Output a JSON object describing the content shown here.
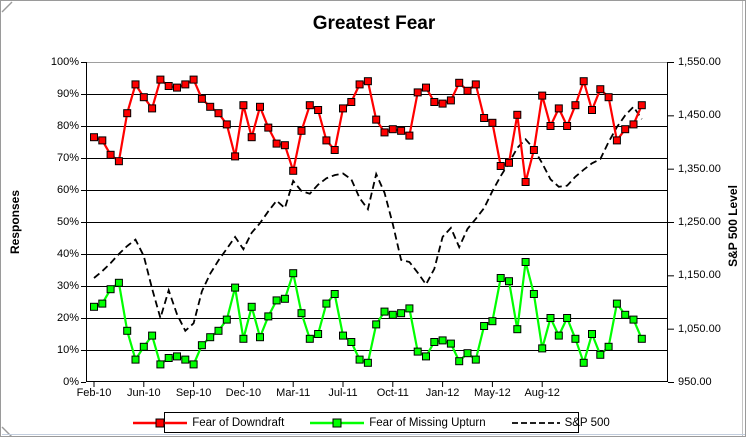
{
  "title": "Greatest Fear",
  "left_axis": {
    "title": "Responses",
    "labels": [
      "100%",
      "90%",
      "80%",
      "70%",
      "60%",
      "50%",
      "40%",
      "30%",
      "20%",
      "10%",
      "0%"
    ]
  },
  "right_axis": {
    "title": "S&P 500 Level",
    "labels": [
      "1,550.00",
      "1,450.00",
      "1,350.00",
      "1,250.00",
      "1,150.00",
      "1,050.00",
      "950.00"
    ]
  },
  "x_axis": {
    "tick_labels": [
      "Feb-10",
      "Jun-10",
      "Sep-10",
      "Dec-10",
      "Mar-11",
      "Jul-11",
      "Oct-11",
      "Jan-12",
      "May-12",
      "Aug-12"
    ],
    "tick_indices": [
      0,
      6,
      12,
      18,
      24,
      30,
      36,
      42,
      48,
      54
    ]
  },
  "legend": {
    "items": [
      {
        "label": "Fear of Downdraft",
        "color": "#FF0000",
        "style": "solid-square-marker"
      },
      {
        "label": "Fear of Missing Upturn",
        "color": "#00FF00",
        "style": "solid-square-marker"
      },
      {
        "label": "S&P 500",
        "color": "#000000",
        "style": "dashed"
      }
    ]
  },
  "chart_data": {
    "type": "line",
    "title": "Greatest Fear",
    "n_points": 67,
    "x_tick_labels": [
      "Feb-10",
      "Jun-10",
      "Sep-10",
      "Dec-10",
      "Mar-11",
      "Jul-11",
      "Oct-11",
      "Jan-12",
      "May-12",
      "Aug-12"
    ],
    "x_tick_indices": [
      0,
      6,
      12,
      18,
      24,
      30,
      36,
      42,
      48,
      54
    ],
    "left_ylabel": "Responses",
    "right_ylabel": "S&P 500 Level",
    "left_ylim": [
      0,
      100
    ],
    "right_ylim": [
      950,
      1550
    ],
    "grid": "horizontal, every 10%",
    "legend_position": "bottom",
    "series": [
      {
        "name": "Fear of Downdraft",
        "axis": "left",
        "unit": "percent",
        "color": "#FF0000",
        "marker": "square",
        "line_style": "solid",
        "values": [
          76.5,
          75.5,
          71,
          69,
          84,
          93,
          89,
          85.5,
          94.5,
          92.5,
          92,
          93,
          94.5,
          88.5,
          86,
          84,
          80.5,
          70.5,
          86.5,
          76.5,
          86,
          79.5,
          74.5,
          74,
          66,
          78.5,
          86.5,
          85,
          75.5,
          72.5,
          85.5,
          87.5,
          93,
          94,
          82,
          78,
          79,
          78.5,
          77,
          90.5,
          92,
          87.5,
          87,
          88,
          93.5,
          91,
          93,
          82.5,
          81,
          67.5,
          68.5,
          83.5,
          62.5,
          72.5,
          89.5,
          80,
          85.5,
          80,
          86.5,
          94,
          85,
          91.5,
          89,
          75.5,
          79,
          80.5,
          86.5
        ]
      },
      {
        "name": "Fear of Missing Upturn",
        "axis": "left",
        "unit": "percent",
        "color": "#00FF00",
        "marker": "square",
        "line_style": "solid",
        "values": [
          23.5,
          24.5,
          29,
          31,
          16,
          7,
          11,
          14.5,
          5.5,
          7.5,
          8,
          7,
          5.5,
          11.5,
          14,
          16,
          19.5,
          29.5,
          13.5,
          23.5,
          14,
          20.5,
          25.5,
          26,
          34,
          21.5,
          13.5,
          15,
          24.5,
          27.5,
          14.5,
          12.5,
          7,
          6,
          18,
          22,
          21,
          21.5,
          23,
          9.5,
          8,
          12.5,
          13,
          12,
          6.5,
          9,
          7,
          17.5,
          19,
          32.5,
          31.5,
          16.5,
          37.5,
          27.5,
          10.5,
          20,
          14.5,
          20,
          13.5,
          6,
          15,
          8.5,
          11,
          24.5,
          21,
          19.5,
          13.5
        ]
      },
      {
        "name": "S&P 500",
        "axis": "right",
        "unit": "index level",
        "color": "#000000",
        "marker": "none",
        "line_style": "dashed",
        "values": [
          1145,
          1158,
          1173,
          1190,
          1205,
          1217,
          1186,
          1125,
          1070,
          1122,
          1077,
          1046,
          1060,
          1120,
          1153,
          1178,
          1200,
          1222,
          1199,
          1230,
          1248,
          1270,
          1290,
          1276,
          1327,
          1308,
          1303,
          1320,
          1332,
          1338,
          1341,
          1330,
          1295,
          1274,
          1340,
          1305,
          1246,
          1179,
          1175,
          1155,
          1133,
          1162,
          1222,
          1239,
          1203,
          1237,
          1256,
          1276,
          1308,
          1336,
          1361,
          1389,
          1405,
          1387,
          1360,
          1330,
          1316,
          1318,
          1335,
          1348,
          1360,
          1368,
          1400,
          1428,
          1450,
          1466,
          1443
        ]
      }
    ]
  }
}
